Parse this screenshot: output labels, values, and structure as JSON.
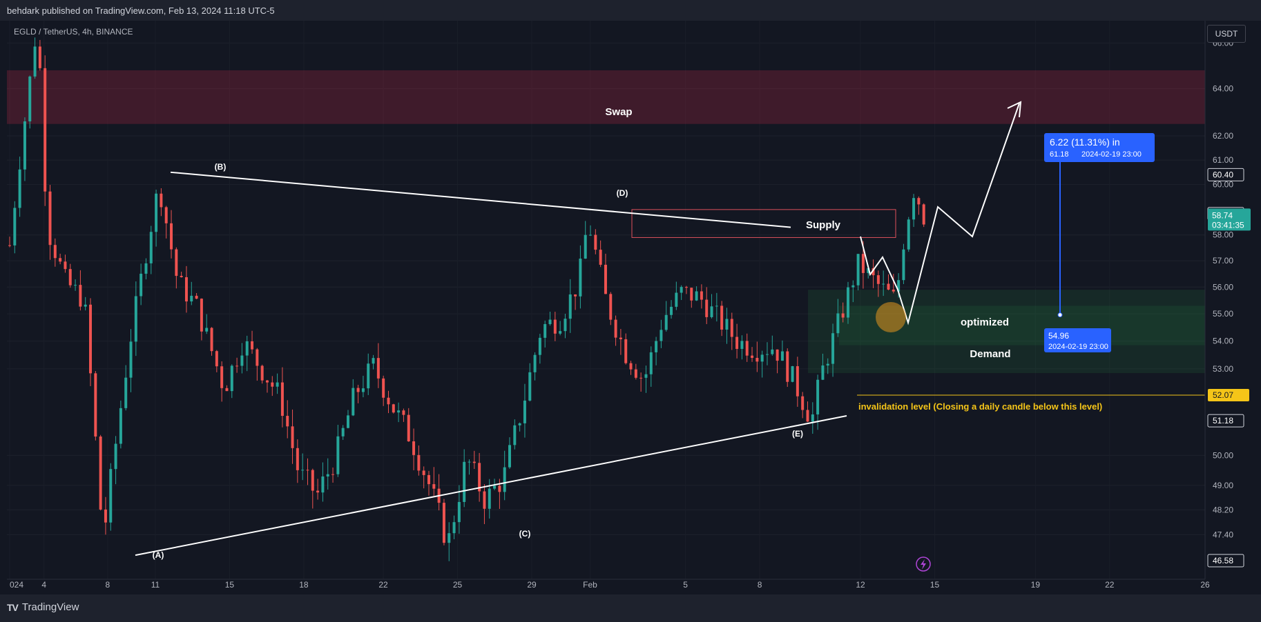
{
  "header": {
    "publisher": "behdark published on TradingView.com, Feb 13, 2024 11:18 UTC-5"
  },
  "symbol": {
    "label": "EGLD / TetherUS, 4h, BINANCE"
  },
  "footer": {
    "brand": "TradingView"
  },
  "scale_button": "USDT",
  "colors": {
    "bg": "#131722",
    "up": "#26a69a",
    "down": "#ef5350",
    "blue": "#2962ff",
    "yellow": "#f5c518"
  },
  "chart_data": {
    "type": "candlestick",
    "ylim": [
      46.0,
      67.0
    ],
    "y_scale": "log",
    "y_ticks": [
      "66.00",
      "64.00",
      "62.00",
      "61.00",
      "60.00",
      "58.00",
      "57.00",
      "56.00",
      "55.00",
      "54.00",
      "53.00",
      "50.00",
      "49.00",
      "48.20",
      "47.40"
    ],
    "x_ticks": [
      "024",
      "4",
      "8",
      "11",
      "15",
      "18",
      "22",
      "25",
      "29",
      "Feb",
      "5",
      "8",
      "12",
      "15",
      "19",
      "22",
      "26"
    ],
    "price_labels": [
      {
        "value": "60.40",
        "price": 60.4,
        "style": "outline"
      },
      {
        "value": "58.84",
        "price": 58.84,
        "style": "outline"
      },
      {
        "value": "58.74",
        "sub": "03:41:35",
        "price": 58.74,
        "style": "current"
      },
      {
        "value": "52.07",
        "price": 52.07,
        "style": "yellow"
      },
      {
        "value": "51.18",
        "price": 51.18,
        "style": "outline"
      },
      {
        "value": "46.58",
        "price": 46.58,
        "style": "outline"
      }
    ],
    "candle_path": [
      [
        0,
        57.6
      ],
      [
        3,
        67.0
      ],
      [
        4,
        58.3
      ],
      [
        6,
        56.2
      ],
      [
        8,
        55.5
      ],
      [
        10,
        47.2
      ],
      [
        13,
        54.2
      ],
      [
        16,
        60.0
      ],
      [
        18,
        56.2
      ],
      [
        20,
        55.3
      ],
      [
        23,
        52.3
      ],
      [
        25,
        54.0
      ],
      [
        27,
        53.0
      ],
      [
        29,
        52.0
      ],
      [
        31,
        49.4
      ],
      [
        33,
        48.7
      ],
      [
        35,
        50.0
      ],
      [
        37,
        52.1
      ],
      [
        39,
        53.1
      ],
      [
        41,
        51.7
      ],
      [
        43,
        50.6
      ],
      [
        45,
        49.0
      ],
      [
        47,
        47.1
      ],
      [
        49,
        49.9
      ],
      [
        51,
        48.5
      ],
      [
        53,
        49.3
      ],
      [
        55,
        51.7
      ],
      [
        57,
        54.5
      ],
      [
        59,
        54.8
      ],
      [
        61,
        56.2
      ],
      [
        62,
        58.6
      ],
      [
        64,
        55.4
      ],
      [
        66,
        53.6
      ],
      [
        68,
        52.6
      ],
      [
        70,
        54.8
      ],
      [
        72,
        55.8
      ],
      [
        74,
        55.6
      ],
      [
        76,
        54.8
      ],
      [
        78,
        54.0
      ],
      [
        80,
        53.7
      ],
      [
        82,
        53.8
      ],
      [
        84,
        52.6
      ],
      [
        86,
        51.2
      ],
      [
        87,
        52.8
      ],
      [
        89,
        54.8
      ],
      [
        91,
        56.9
      ],
      [
        93,
        56.1
      ],
      [
        95,
        55.5
      ],
      [
        96,
        58.2
      ],
      [
        97,
        59.9
      ],
      [
        98,
        58.7
      ]
    ],
    "zones": [
      {
        "label": "Swap",
        "y_top": 64.8,
        "y_bottom": 62.5,
        "color": "red"
      },
      {
        "label": "Supply",
        "y_top": 59.0,
        "y_bottom": 57.9,
        "color": "red-outline"
      },
      {
        "label": "Demand",
        "y_top": 55.9,
        "y_bottom": 52.85,
        "color": "green"
      },
      {
        "label": "optimized",
        "y_top": 55.3,
        "y_bottom": 53.85,
        "color": "green-inner"
      }
    ],
    "wave_labels": [
      "(A)",
      "(B)",
      "(C)",
      "(D)",
      "(E)"
    ],
    "annotations": {
      "invalidation": "invalidation level (Closing a daily candle below this level)",
      "measure_top": "6.22 (11.31%) in",
      "measure_top_sub": "61.18",
      "measure_top_date": "2024-02-19  23:00",
      "measure_bottom": "54.96",
      "measure_bottom_date": "2024-02-19 23:00"
    }
  }
}
